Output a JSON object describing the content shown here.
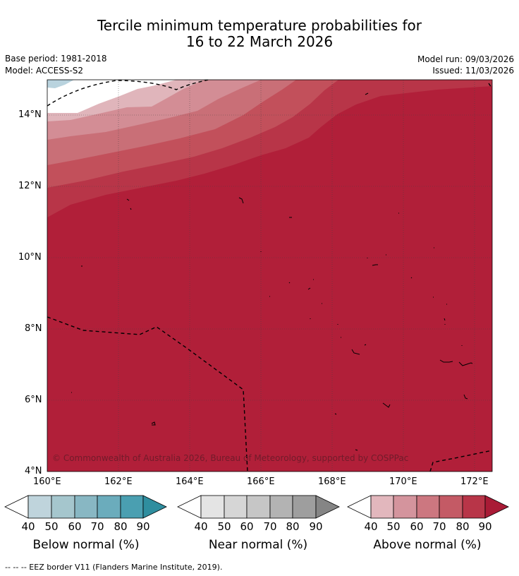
{
  "header": {
    "title_line1": "Tercile minimum temperature probabilities for",
    "title_line2": "16 to 22 March 2026",
    "base_period": "Base period: 1981-2018",
    "model": "Model: ACCESS-S2",
    "model_run": "Model run: 09/03/2026",
    "issued": "Issued: 11/03/2026"
  },
  "map": {
    "lon_labels": [
      "160°E",
      "162°E",
      "164°E",
      "166°E",
      "168°E",
      "170°E",
      "172°E"
    ],
    "lat_labels": [
      "14°N",
      "12°N",
      "10°N",
      "8°N",
      "6°N",
      "4°N"
    ],
    "copyright": "© Commonwealth of Australia 2026, Bureau of Meteorology, supported by COSPPac"
  },
  "colorbars": [
    {
      "label": "Below normal (%)",
      "ticks": [
        "40",
        "50",
        "60",
        "70",
        "80",
        "90"
      ],
      "colors": [
        "#bfd4dc",
        "#a5c6cd",
        "#88b7c3",
        "#6bacbc",
        "#4a9fb1",
        "#2f8e9f"
      ]
    },
    {
      "label": "Near normal (%)",
      "ticks": [
        "40",
        "50",
        "60",
        "70",
        "80",
        "90"
      ],
      "colors": [
        "#e4e4e4",
        "#d6d6d6",
        "#c6c6c6",
        "#b3b3b3",
        "#9e9e9e",
        "#858585"
      ]
    },
    {
      "label": "Above normal (%)",
      "ticks": [
        "40",
        "50",
        "60",
        "70",
        "80",
        "90"
      ],
      "colors": [
        "#e2b7bd",
        "#d4949d",
        "#cc7780",
        "#c45a65",
        "#b83548",
        "#a91b36"
      ]
    }
  ],
  "footnote": "--  --  -- EEZ border V11 (Flanders Marine Institute, 2019)."
}
